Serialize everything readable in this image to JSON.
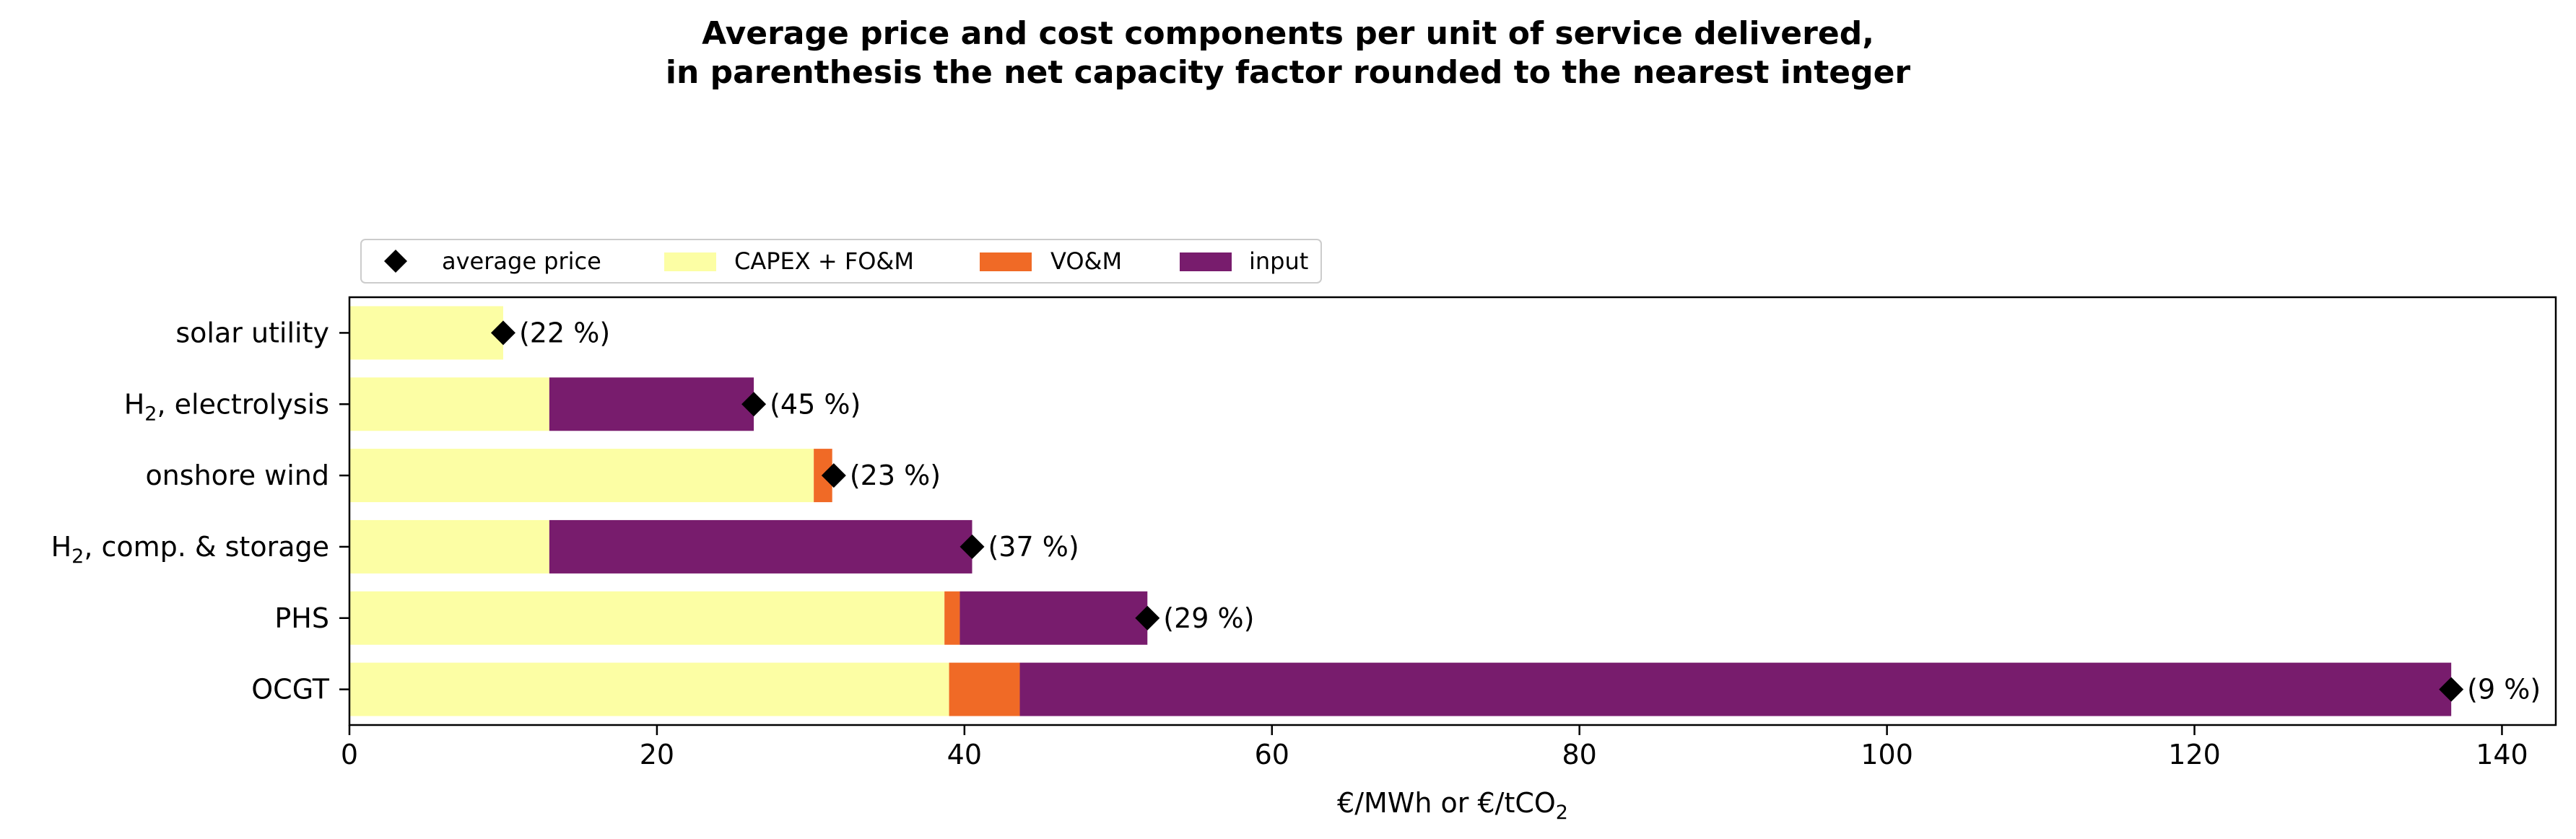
{
  "chart_data": {
    "type": "bar",
    "orientation": "horizontal",
    "stacked": true,
    "title_lines": [
      "Average price and cost components per unit of service delivered,",
      "in parenthesis the net capacity factor rounded to the nearest integer"
    ],
    "xlabel": "€/MWh or €/tCO",
    "xlabel_sub": "2",
    "xlim": [
      0,
      143.5
    ],
    "xticks": [
      0,
      20,
      40,
      60,
      80,
      100,
      120,
      140
    ],
    "grid": false,
    "legend_placement": "top-left outside",
    "categories": [
      {
        "pre": "solar utility",
        "sub": "",
        "post": ""
      },
      {
        "pre": "H",
        "sub": "2",
        "post": ", electrolysis"
      },
      {
        "pre": "onshore wind",
        "sub": "",
        "post": ""
      },
      {
        "pre": "H",
        "sub": "2",
        "post": ", comp. & storage"
      },
      {
        "pre": "PHS",
        "sub": "",
        "post": ""
      },
      {
        "pre": "OCGT",
        "sub": "",
        "post": ""
      }
    ],
    "series": [
      {
        "name": "CAPEX + FO&M",
        "color": "#fcfea4",
        "values": [
          10.0,
          13.0,
          30.2,
          13.0,
          38.7,
          39.0
        ]
      },
      {
        "name": "VO&M",
        "color": "#f06a26",
        "values": [
          0.0,
          0.0,
          1.2,
          0.0,
          1.0,
          4.6
        ]
      },
      {
        "name": "input",
        "color": "#781c6d",
        "values": [
          0.0,
          13.3,
          0.0,
          27.5,
          12.2,
          93.1
        ]
      }
    ],
    "average_price": {
      "name": "average price",
      "color": "#000000",
      "values": [
        10.0,
        26.3,
        31.5,
        40.5,
        51.9,
        136.7
      ]
    },
    "capacity_factor_labels": [
      "(22 %)",
      "(45 %)",
      "(23 %)",
      "(37 %)",
      "(29 %)",
      "(9 %)"
    ]
  }
}
